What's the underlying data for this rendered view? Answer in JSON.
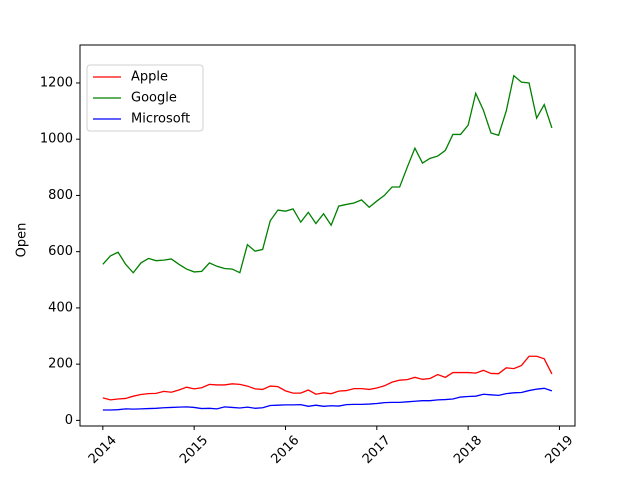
{
  "chart_data": {
    "type": "line",
    "ylabel": "Open",
    "x": [
      2014,
      2014.083,
      2014.167,
      2014.25,
      2014.333,
      2014.417,
      2014.5,
      2014.583,
      2014.667,
      2014.75,
      2014.833,
      2014.917,
      2015,
      2015.083,
      2015.167,
      2015.25,
      2015.333,
      2015.417,
      2015.5,
      2015.583,
      2015.667,
      2015.75,
      2015.833,
      2015.917,
      2016,
      2016.083,
      2016.167,
      2016.25,
      2016.333,
      2016.417,
      2016.5,
      2016.583,
      2016.667,
      2016.75,
      2016.833,
      2016.917,
      2017,
      2017.083,
      2017.167,
      2017.25,
      2017.333,
      2017.417,
      2017.5,
      2017.583,
      2017.667,
      2017.75,
      2017.833,
      2017.917,
      2018,
      2018.083,
      2018.167,
      2018.25,
      2018.333,
      2018.417,
      2018.5,
      2018.583,
      2018.667,
      2018.75,
      2018.833,
      2018.917
    ],
    "series": [
      {
        "name": "Apple",
        "color": "#ff0000",
        "values": [
          80,
          73,
          76,
          78,
          86,
          92,
          95,
          96,
          103,
          100,
          108,
          118,
          112,
          116,
          128,
          126,
          126,
          130,
          128,
          122,
          112,
          110,
          122,
          120,
          105,
          97,
          97,
          108,
          93,
          98,
          95,
          104,
          106,
          113,
          113,
          110,
          115,
          123,
          136,
          143,
          145,
          153,
          146,
          149,
          163,
          153,
          170,
          170,
          170,
          168,
          178,
          167,
          166,
          187,
          184,
          195,
          228,
          228,
          219,
          165
        ]
      },
      {
        "name": "Google",
        "color": "#008000",
        "values": [
          555,
          585,
          598,
          555,
          525,
          560,
          576,
          568,
          570,
          574,
          555,
          538,
          528,
          530,
          560,
          548,
          540,
          538,
          525,
          625,
          602,
          608,
          710,
          748,
          744,
          752,
          705,
          740,
          700,
          735,
          694,
          762,
          768,
          773,
          784,
          758,
          780,
          800,
          830,
          830,
          900,
          968,
          915,
          932,
          940,
          960,
          1017,
          1017,
          1050,
          1163,
          1103,
          1022,
          1014,
          1100,
          1226,
          1203,
          1200,
          1075,
          1123,
          1040
        ]
      },
      {
        "name": "Microsoft",
        "color": "#0000ff",
        "values": [
          37,
          37,
          38,
          41,
          40,
          41,
          42,
          43,
          45,
          46,
          47,
          48,
          46,
          42,
          43,
          41,
          48,
          46,
          44,
          47,
          43,
          45,
          53,
          54,
          55,
          55,
          56,
          50,
          54,
          50,
          52,
          51,
          56,
          57,
          57,
          58,
          60,
          63,
          64,
          64,
          66,
          68,
          70,
          70,
          73,
          74,
          76,
          83,
          85,
          86,
          93,
          91,
          89,
          95,
          98,
          99,
          106,
          111,
          114,
          105
        ]
      }
    ],
    "xlim": [
      2013.75,
      2019.17
    ],
    "xticks": [
      2014,
      2015,
      2016,
      2017,
      2018,
      2019
    ],
    "ylim": [
      -20,
      1335
    ],
    "yticks": [
      0,
      200,
      400,
      600,
      800,
      1000,
      1200
    ],
    "legend": "upper left"
  }
}
